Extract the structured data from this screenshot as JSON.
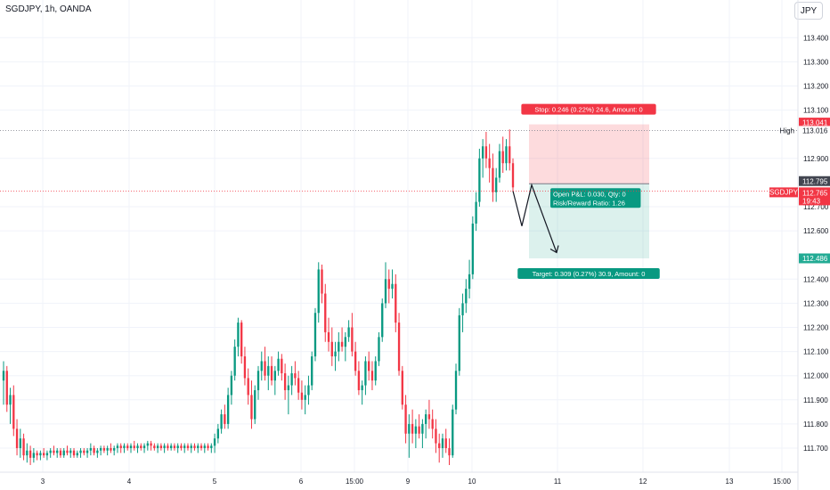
{
  "header": {
    "symbol_title": "SGDJPY, 1h, OANDA",
    "currency": "JPY"
  },
  "chart_data": {
    "type": "candlestick",
    "symbol": "SGDJPY",
    "interval": "1h",
    "source": "OANDA",
    "ylim": [
      111.62,
      113.46
    ],
    "y_ticks": [
      "113.400",
      "113.300",
      "113.200",
      "113.100",
      "112.900",
      "112.700",
      "112.600",
      "112.400",
      "112.300",
      "112.200",
      "112.100",
      "112.000",
      "111.900",
      "111.800",
      "111.700"
    ],
    "x_ticks": [
      "3",
      "4",
      "5",
      "6",
      "15:00",
      "9",
      "10",
      "11",
      "12",
      "13",
      "15:00"
    ],
    "candles": [
      [
        111.98,
        112.06,
        111.88,
        112.02
      ],
      [
        112.02,
        112.04,
        111.85,
        111.88
      ],
      [
        111.88,
        111.95,
        111.8,
        111.92
      ],
      [
        111.92,
        111.96,
        111.75,
        111.78
      ],
      [
        111.78,
        111.82,
        111.67,
        111.7
      ],
      [
        111.7,
        111.78,
        111.66,
        111.74
      ],
      [
        111.74,
        111.76,
        111.65,
        111.67
      ],
      [
        111.67,
        111.72,
        111.64,
        111.69
      ],
      [
        111.69,
        111.71,
        111.63,
        111.66
      ],
      [
        111.66,
        111.7,
        111.64,
        111.68
      ],
      [
        111.68,
        111.69,
        111.65,
        111.67
      ],
      [
        111.67,
        111.69,
        111.65,
        111.68
      ],
      [
        111.68,
        111.7,
        111.66,
        111.67
      ],
      [
        111.67,
        111.69,
        111.65,
        111.68
      ],
      [
        111.68,
        111.7,
        111.66,
        111.69
      ],
      [
        111.69,
        111.71,
        111.67,
        111.68
      ],
      [
        111.68,
        111.7,
        111.66,
        111.69
      ],
      [
        111.69,
        111.7,
        111.66,
        111.67
      ],
      [
        111.67,
        111.7,
        111.66,
        111.69
      ],
      [
        111.69,
        111.71,
        111.67,
        111.68
      ],
      [
        111.68,
        111.7,
        111.66,
        111.69
      ],
      [
        111.69,
        111.7,
        111.66,
        111.67
      ],
      [
        111.67,
        111.69,
        111.66,
        111.68
      ],
      [
        111.68,
        111.7,
        111.66,
        111.69
      ],
      [
        111.69,
        111.7,
        111.67,
        111.68
      ],
      [
        111.68,
        111.7,
        111.66,
        111.69
      ],
      [
        111.69,
        111.72,
        111.67,
        111.7
      ],
      [
        111.7,
        111.71,
        111.67,
        111.68
      ],
      [
        111.68,
        111.7,
        111.66,
        111.69
      ],
      [
        111.69,
        111.71,
        111.67,
        111.7
      ],
      [
        111.7,
        111.71,
        111.68,
        111.69
      ],
      [
        111.69,
        111.71,
        111.67,
        111.7
      ],
      [
        111.7,
        111.72,
        111.68,
        111.69
      ],
      [
        111.69,
        111.71,
        111.67,
        111.7
      ],
      [
        111.7,
        111.72,
        111.68,
        111.71
      ],
      [
        111.71,
        111.72,
        111.68,
        111.7
      ],
      [
        111.7,
        111.72,
        111.68,
        111.71
      ],
      [
        111.71,
        111.72,
        111.69,
        111.7
      ],
      [
        111.7,
        111.72,
        111.68,
        111.71
      ],
      [
        111.71,
        111.73,
        111.69,
        111.7
      ],
      [
        111.7,
        111.72,
        111.68,
        111.71
      ],
      [
        111.71,
        111.72,
        111.69,
        111.7
      ],
      [
        111.7,
        111.72,
        111.68,
        111.71
      ],
      [
        111.71,
        111.73,
        111.69,
        111.72
      ],
      [
        111.72,
        111.73,
        111.69,
        111.71
      ],
      [
        111.71,
        111.72,
        111.69,
        111.7
      ],
      [
        111.7,
        111.72,
        111.68,
        111.71
      ],
      [
        111.71,
        111.72,
        111.69,
        111.7
      ],
      [
        111.7,
        111.72,
        111.68,
        111.71
      ],
      [
        111.71,
        111.72,
        111.69,
        111.7
      ],
      [
        111.7,
        111.72,
        111.69,
        111.71
      ],
      [
        111.71,
        111.72,
        111.69,
        111.7
      ],
      [
        111.7,
        111.72,
        111.68,
        111.71
      ],
      [
        111.71,
        111.72,
        111.69,
        111.7
      ],
      [
        111.7,
        111.72,
        111.68,
        111.71
      ],
      [
        111.71,
        111.72,
        111.69,
        111.7
      ],
      [
        111.7,
        111.72,
        111.68,
        111.71
      ],
      [
        111.71,
        111.72,
        111.69,
        111.7
      ],
      [
        111.7,
        111.72,
        111.68,
        111.71
      ],
      [
        111.71,
        111.72,
        111.69,
        111.7
      ],
      [
        111.7,
        111.72,
        111.68,
        111.71
      ],
      [
        111.71,
        111.72,
        111.69,
        111.7
      ],
      [
        111.7,
        111.72,
        111.68,
        111.71
      ],
      [
        111.71,
        111.76,
        111.68,
        111.74
      ],
      [
        111.74,
        111.8,
        111.72,
        111.78
      ],
      [
        111.78,
        111.86,
        111.76,
        111.84
      ],
      [
        111.84,
        111.88,
        111.78,
        111.8
      ],
      [
        111.8,
        111.95,
        111.78,
        111.92
      ],
      [
        111.92,
        112.02,
        111.88,
        112.0
      ],
      [
        112.0,
        112.15,
        111.98,
        112.12
      ],
      [
        112.12,
        112.24,
        112.08,
        112.22
      ],
      [
        112.22,
        112.23,
        112.05,
        112.08
      ],
      [
        112.08,
        112.12,
        111.96,
        111.99
      ],
      [
        111.99,
        112.03,
        111.88,
        111.92
      ],
      [
        111.92,
        111.98,
        111.78,
        111.82
      ],
      [
        111.82,
        111.96,
        111.8,
        111.94
      ],
      [
        111.94,
        112.04,
        111.9,
        112.02
      ],
      [
        112.02,
        112.1,
        111.98,
        112.06
      ],
      [
        112.06,
        112.12,
        111.98,
        112.0
      ],
      [
        112.0,
        112.08,
        111.94,
        112.04
      ],
      [
        112.04,
        112.08,
        111.96,
        111.98
      ],
      [
        111.98,
        112.04,
        111.92,
        112.02
      ],
      [
        112.02,
        112.1,
        112.0,
        112.07
      ],
      [
        112.07,
        112.09,
        111.98,
        112.01
      ],
      [
        112.01,
        112.05,
        111.9,
        111.94
      ],
      [
        111.94,
        112.0,
        111.84,
        111.96
      ],
      [
        111.96,
        112.04,
        111.92,
        112.01
      ],
      [
        112.01,
        112.06,
        111.96,
        111.99
      ],
      [
        111.99,
        112.02,
        111.9,
        111.93
      ],
      [
        111.93,
        111.98,
        111.86,
        111.9
      ],
      [
        111.9,
        111.96,
        111.84,
        111.92
      ],
      [
        111.92,
        112.0,
        111.88,
        111.96
      ],
      [
        111.96,
        112.1,
        111.94,
        112.08
      ],
      [
        112.08,
        112.28,
        112.06,
        112.26
      ],
      [
        112.26,
        112.47,
        112.22,
        112.44
      ],
      [
        112.44,
        112.46,
        112.3,
        112.34
      ],
      [
        112.34,
        112.38,
        112.14,
        112.18
      ],
      [
        112.18,
        112.24,
        112.1,
        112.14
      ],
      [
        112.14,
        112.2,
        112.04,
        112.08
      ],
      [
        112.08,
        112.14,
        112.02,
        112.1
      ],
      [
        112.1,
        112.18,
        112.06,
        112.14
      ],
      [
        112.14,
        112.2,
        112.1,
        112.12
      ],
      [
        112.12,
        112.18,
        112.06,
        112.16
      ],
      [
        112.16,
        112.23,
        112.14,
        112.2
      ],
      [
        112.2,
        112.26,
        112.08,
        112.1
      ],
      [
        112.1,
        112.14,
        112.0,
        112.02
      ],
      [
        112.02,
        112.06,
        111.92,
        111.94
      ],
      [
        111.94,
        111.98,
        111.88,
        111.96
      ],
      [
        111.96,
        112.08,
        111.92,
        112.06
      ],
      [
        112.06,
        112.1,
        111.98,
        112.02
      ],
      [
        112.02,
        112.06,
        111.94,
        111.98
      ],
      [
        111.98,
        112.08,
        111.96,
        112.06
      ],
      [
        112.06,
        112.18,
        112.04,
        112.16
      ],
      [
        112.16,
        112.32,
        112.14,
        112.3
      ],
      [
        112.3,
        112.47,
        112.28,
        112.4
      ],
      [
        112.4,
        112.44,
        112.3,
        112.36
      ],
      [
        112.36,
        112.44,
        112.32,
        112.38
      ],
      [
        112.38,
        112.42,
        112.18,
        112.22
      ],
      [
        112.22,
        112.26,
        112.0,
        112.02
      ],
      [
        112.02,
        112.04,
        111.86,
        111.88
      ],
      [
        111.88,
        111.92,
        111.72,
        111.76
      ],
      [
        111.76,
        111.84,
        111.66,
        111.8
      ],
      [
        111.8,
        111.86,
        111.72,
        111.76
      ],
      [
        111.76,
        111.82,
        111.7,
        111.79
      ],
      [
        111.79,
        111.84,
        111.74,
        111.76
      ],
      [
        111.76,
        111.82,
        111.7,
        111.8
      ],
      [
        111.8,
        111.86,
        111.74,
        111.84
      ],
      [
        111.84,
        111.9,
        111.78,
        111.82
      ],
      [
        111.82,
        111.86,
        111.74,
        111.78
      ],
      [
        111.78,
        111.82,
        111.68,
        111.72
      ],
      [
        111.72,
        111.76,
        111.64,
        111.7
      ],
      [
        111.7,
        111.76,
        111.66,
        111.74
      ],
      [
        111.74,
        111.78,
        111.68,
        111.7
      ],
      [
        111.7,
        111.74,
        111.63,
        111.67
      ],
      [
        111.67,
        111.88,
        111.66,
        111.86
      ],
      [
        111.86,
        112.05,
        111.84,
        112.02
      ],
      [
        112.02,
        112.28,
        112.0,
        112.25
      ],
      [
        112.25,
        112.34,
        112.18,
        112.3
      ],
      [
        112.3,
        112.4,
        112.26,
        112.36
      ],
      [
        112.36,
        112.48,
        112.32,
        112.42
      ],
      [
        112.42,
        112.66,
        112.4,
        112.63
      ],
      [
        112.63,
        112.76,
        112.6,
        112.72
      ],
      [
        112.72,
        112.94,
        112.7,
        112.9
      ],
      [
        112.9,
        112.98,
        112.82,
        112.95
      ],
      [
        112.95,
        113.01,
        112.86,
        112.9
      ],
      [
        112.9,
        112.96,
        112.8,
        112.86
      ],
      [
        112.86,
        112.92,
        112.72,
        112.76
      ],
      [
        112.76,
        112.86,
        112.72,
        112.82
      ],
      [
        112.82,
        112.96,
        112.8,
        112.93
      ],
      [
        112.93,
        112.99,
        112.84,
        112.88
      ],
      [
        112.88,
        112.98,
        112.85,
        112.95
      ],
      [
        112.95,
        113.02,
        112.85,
        112.88
      ],
      [
        112.88,
        112.9,
        112.76,
        112.78
      ]
    ],
    "current_price": 112.765,
    "position": {
      "type": "short",
      "entry": 112.795,
      "stop": 113.041,
      "target": 112.486,
      "stop_label": "Stop: 0.246 (0.22%) 24.6, Amount: 0",
      "target_label": "Target: 0.309 (0.27%) 30.9, Amount: 0",
      "pnl_label": "Open P&L: 0.030, Qty: 0",
      "rr_label": "Risk/Reward Ratio: 1.26"
    },
    "projection_path": [
      [
        112.765,
        0
      ],
      [
        112.62,
        1
      ],
      [
        112.79,
        2
      ],
      [
        112.51,
        3
      ]
    ],
    "high_line": 113.016
  },
  "axis_labels": {
    "high_label": "High",
    "high_price": "113.016",
    "stop_price": "113.041",
    "entry_price": "112.795",
    "symbol_badge": "SGDJPY",
    "current_price": "112.765",
    "countdown": "19:43",
    "target_price": "112.486"
  },
  "colors": {
    "up": "#089981",
    "down": "#f23645",
    "stop_fill": "rgba(242,54,69,0.18)",
    "target_fill": "rgba(8,153,129,0.14)",
    "stop_badge": "#f23645",
    "target_badge": "#22ab94",
    "target_label": "#089981",
    "entry_badge": "#434651"
  }
}
